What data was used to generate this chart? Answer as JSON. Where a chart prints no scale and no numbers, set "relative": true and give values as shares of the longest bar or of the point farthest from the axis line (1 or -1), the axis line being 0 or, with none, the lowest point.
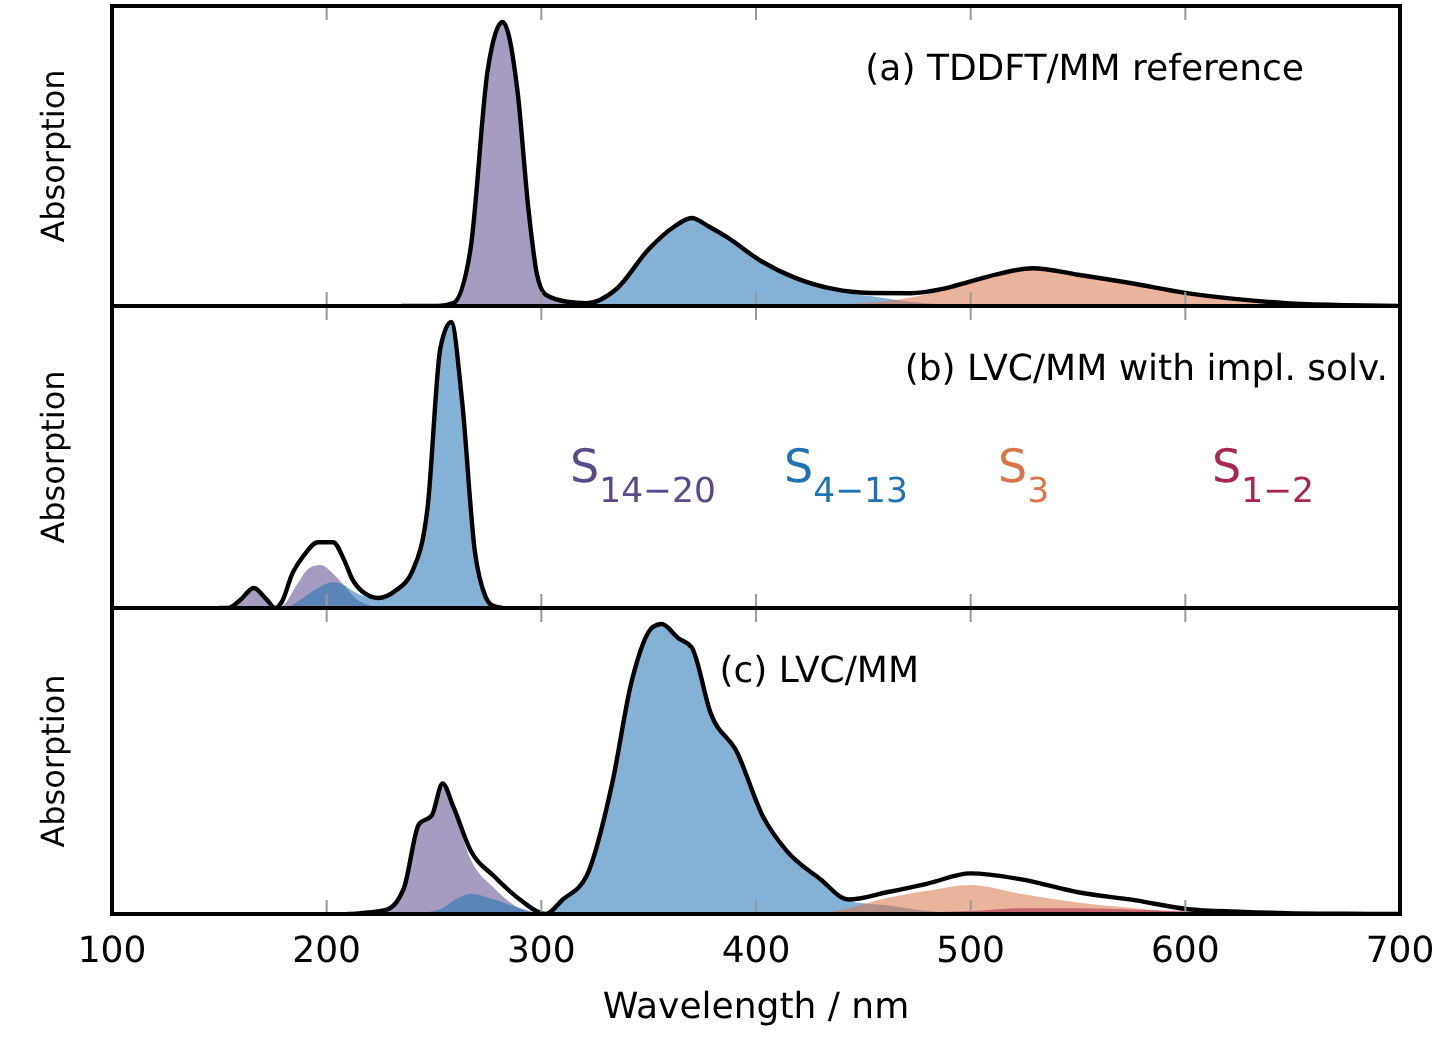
{
  "chart_data": [
    {
      "type": "area",
      "title": "(a) TDDFT/MM reference",
      "ylabel": "Absorption",
      "relative": true,
      "xlim": [
        100,
        700
      ],
      "xticks": [
        100,
        200,
        300,
        400,
        500,
        600,
        700
      ],
      "tick_labels": false,
      "series": [
        {
          "color": "#5b4a8b",
          "x": [
            235,
            252,
            259,
            267,
            275,
            282,
            289,
            294,
            298,
            302,
            312,
            321,
            340
          ],
          "values": [
            0,
            0,
            0.01,
            0.2,
            0.83,
            1,
            0.75,
            0.34,
            0.11,
            0.035,
            0.01,
            0.004,
            0
          ]
        },
        {
          "color": "#1f72b4",
          "x": [
            305,
            321,
            335,
            350,
            362,
            370,
            378,
            387,
            402,
            418,
            436,
            453,
            472,
            487,
            500
          ],
          "values": [
            0,
            0.006,
            0.06,
            0.2,
            0.28,
            0.31,
            0.28,
            0.24,
            0.16,
            0.1,
            0.055,
            0.035,
            0.015,
            0.005,
            0
          ]
        },
        {
          "color": "#d9744b",
          "x": [
            425,
            436,
            453,
            472,
            487,
            500,
            514,
            529,
            550,
            575,
            600,
            623,
            647,
            675,
            700
          ],
          "values": [
            0,
            0.005,
            0.012,
            0.03,
            0.055,
            0.085,
            0.115,
            0.133,
            0.11,
            0.08,
            0.046,
            0.025,
            0.01,
            0.003,
            0
          ]
        },
        {
          "type": "line",
          "color": "#000000",
          "x": [
            235,
            252,
            259,
            267,
            275,
            282,
            289,
            294,
            298,
            302,
            312,
            321,
            335,
            350,
            362,
            370,
            378,
            387,
            402,
            418,
            436,
            453,
            472,
            487,
            500,
            514,
            529,
            550,
            575,
            600,
            623,
            647,
            675,
            700
          ],
          "values": [
            0,
            0,
            0.01,
            0.2,
            0.83,
            1,
            0.75,
            0.34,
            0.11,
            0.04,
            0.015,
            0.01,
            0.06,
            0.2,
            0.28,
            0.31,
            0.28,
            0.24,
            0.16,
            0.1,
            0.06,
            0.046,
            0.045,
            0.06,
            0.087,
            0.115,
            0.133,
            0.11,
            0.08,
            0.046,
            0.025,
            0.01,
            0.003,
            0
          ]
        }
      ]
    },
    {
      "type": "area",
      "title": "(b) LVC/MM with impl. solv.",
      "ylabel": "Absorption",
      "relative": true,
      "xlim": [
        100,
        700
      ],
      "xticks": [
        100,
        200,
        300,
        400,
        500,
        600,
        700
      ],
      "tick_labels": false,
      "legend": "right",
      "series": [
        {
          "name": "S$_{14−20}$",
          "color": "#5b4a8b",
          "x": [
            154,
            160,
            166,
            172,
            176,
            180,
            186,
            192,
            197,
            203,
            208,
            214,
            220,
            228
          ],
          "values": [
            0,
            0.03,
            0.07,
            0.03,
            0,
            0.01,
            0.08,
            0.14,
            0.15,
            0.12,
            0.08,
            0.03,
            0.01,
            0
          ]
        },
        {
          "name": "S$_{4−13}$",
          "color": "#1f72b4",
          "x": [
            182,
            190,
            196,
            203,
            208,
            212,
            218,
            224,
            232,
            240,
            247,
            253,
            258,
            263,
            269,
            274,
            277,
            282
          ],
          "values": [
            0,
            0.04,
            0.07,
            0.09,
            0.08,
            0.06,
            0.04,
            0.035,
            0.06,
            0.13,
            0.35,
            0.91,
            1,
            0.73,
            0.2,
            0.04,
            0.01,
            0
          ]
        },
        {
          "name": "S$_{3}$",
          "color": "#d9744b"
        },
        {
          "name": "S$_{1−2}$",
          "color": "#a8264f"
        },
        {
          "type": "line",
          "color": "#000000",
          "x": [
            150,
            154,
            160,
            166,
            172,
            176,
            179,
            184,
            189,
            196,
            203,
            208,
            212,
            218,
            224,
            232,
            240,
            247,
            253,
            258,
            263,
            269,
            274,
            277,
            282
          ],
          "values": [
            0,
            0,
            0.03,
            0.07,
            0.03,
            0,
            0.02,
            0.12,
            0.18,
            0.23,
            0.23,
            0.17,
            0.1,
            0.05,
            0.035,
            0.06,
            0.13,
            0.35,
            0.91,
            1,
            0.73,
            0.2,
            0.04,
            0.01,
            0
          ]
        }
      ]
    },
    {
      "type": "area",
      "title": "(c) LVC/MM",
      "xlabel": "Wavelength / nm",
      "ylabel": "Absorption",
      "relative": true,
      "xlim": [
        100,
        700
      ],
      "xticks": [
        100,
        200,
        300,
        400,
        500,
        600,
        700
      ],
      "tick_labels": "x",
      "series": [
        {
          "color": "#5b4a8b",
          "x": [
            210,
            216,
            228,
            236,
            243,
            249,
            254,
            259,
            267,
            278,
            290,
            302
          ],
          "values": [
            0,
            0.003,
            0.015,
            0.09,
            0.31,
            0.34,
            0.45,
            0.36,
            0.19,
            0.09,
            0.02,
            0
          ]
        },
        {
          "color": "#1f72b4",
          "x": [
            235,
            245,
            254,
            260,
            267,
            278,
            290,
            302,
            310,
            321,
            333,
            342,
            352,
            356,
            364,
            370,
            379,
            391,
            403,
            414,
            430,
            443,
            461,
            480,
            500
          ],
          "values": [
            0,
            0.005,
            0.02,
            0.05,
            0.07,
            0.05,
            0.02,
            0,
            0.05,
            0.13,
            0.45,
            0.8,
            0.99,
            1,
            0.95,
            0.92,
            0.69,
            0.56,
            0.34,
            0.22,
            0.12,
            0.045,
            0.03,
            0.01,
            0
          ]
        },
        {
          "color": "#d9744b",
          "x": [
            430,
            443,
            461,
            480,
            500,
            523,
            550,
            577,
            601,
            625
          ],
          "values": [
            0,
            0.02,
            0.055,
            0.08,
            0.1,
            0.07,
            0.04,
            0.02,
            0.005,
            0
          ]
        },
        {
          "color": "#a8264f",
          "x": [
            460,
            480,
            500,
            523,
            550,
            577,
            601,
            625,
            650
          ],
          "values": [
            0,
            0.005,
            0.01,
            0.02,
            0.02,
            0.015,
            0.01,
            0.003,
            0
          ]
        },
        {
          "type": "line",
          "color": "#000000",
          "x": [
            210,
            216,
            228,
            236,
            243,
            249,
            254,
            259,
            267,
            278,
            290,
            302,
            310,
            321,
            333,
            342,
            352,
            356,
            364,
            370,
            379,
            391,
            403,
            414,
            430,
            443,
            461,
            480,
            500,
            523,
            550,
            577,
            601,
            625,
            647,
            675,
            700
          ],
          "values": [
            0,
            0.003,
            0.015,
            0.09,
            0.31,
            0.34,
            0.45,
            0.37,
            0.22,
            0.13,
            0.05,
            0,
            0.05,
            0.13,
            0.45,
            0.8,
            0.99,
            1,
            0.95,
            0.92,
            0.69,
            0.56,
            0.34,
            0.22,
            0.12,
            0.05,
            0.075,
            0.105,
            0.14,
            0.12,
            0.075,
            0.047,
            0.017,
            0.008,
            0.003,
            0.001,
            0
          ]
        }
      ]
    }
  ]
}
